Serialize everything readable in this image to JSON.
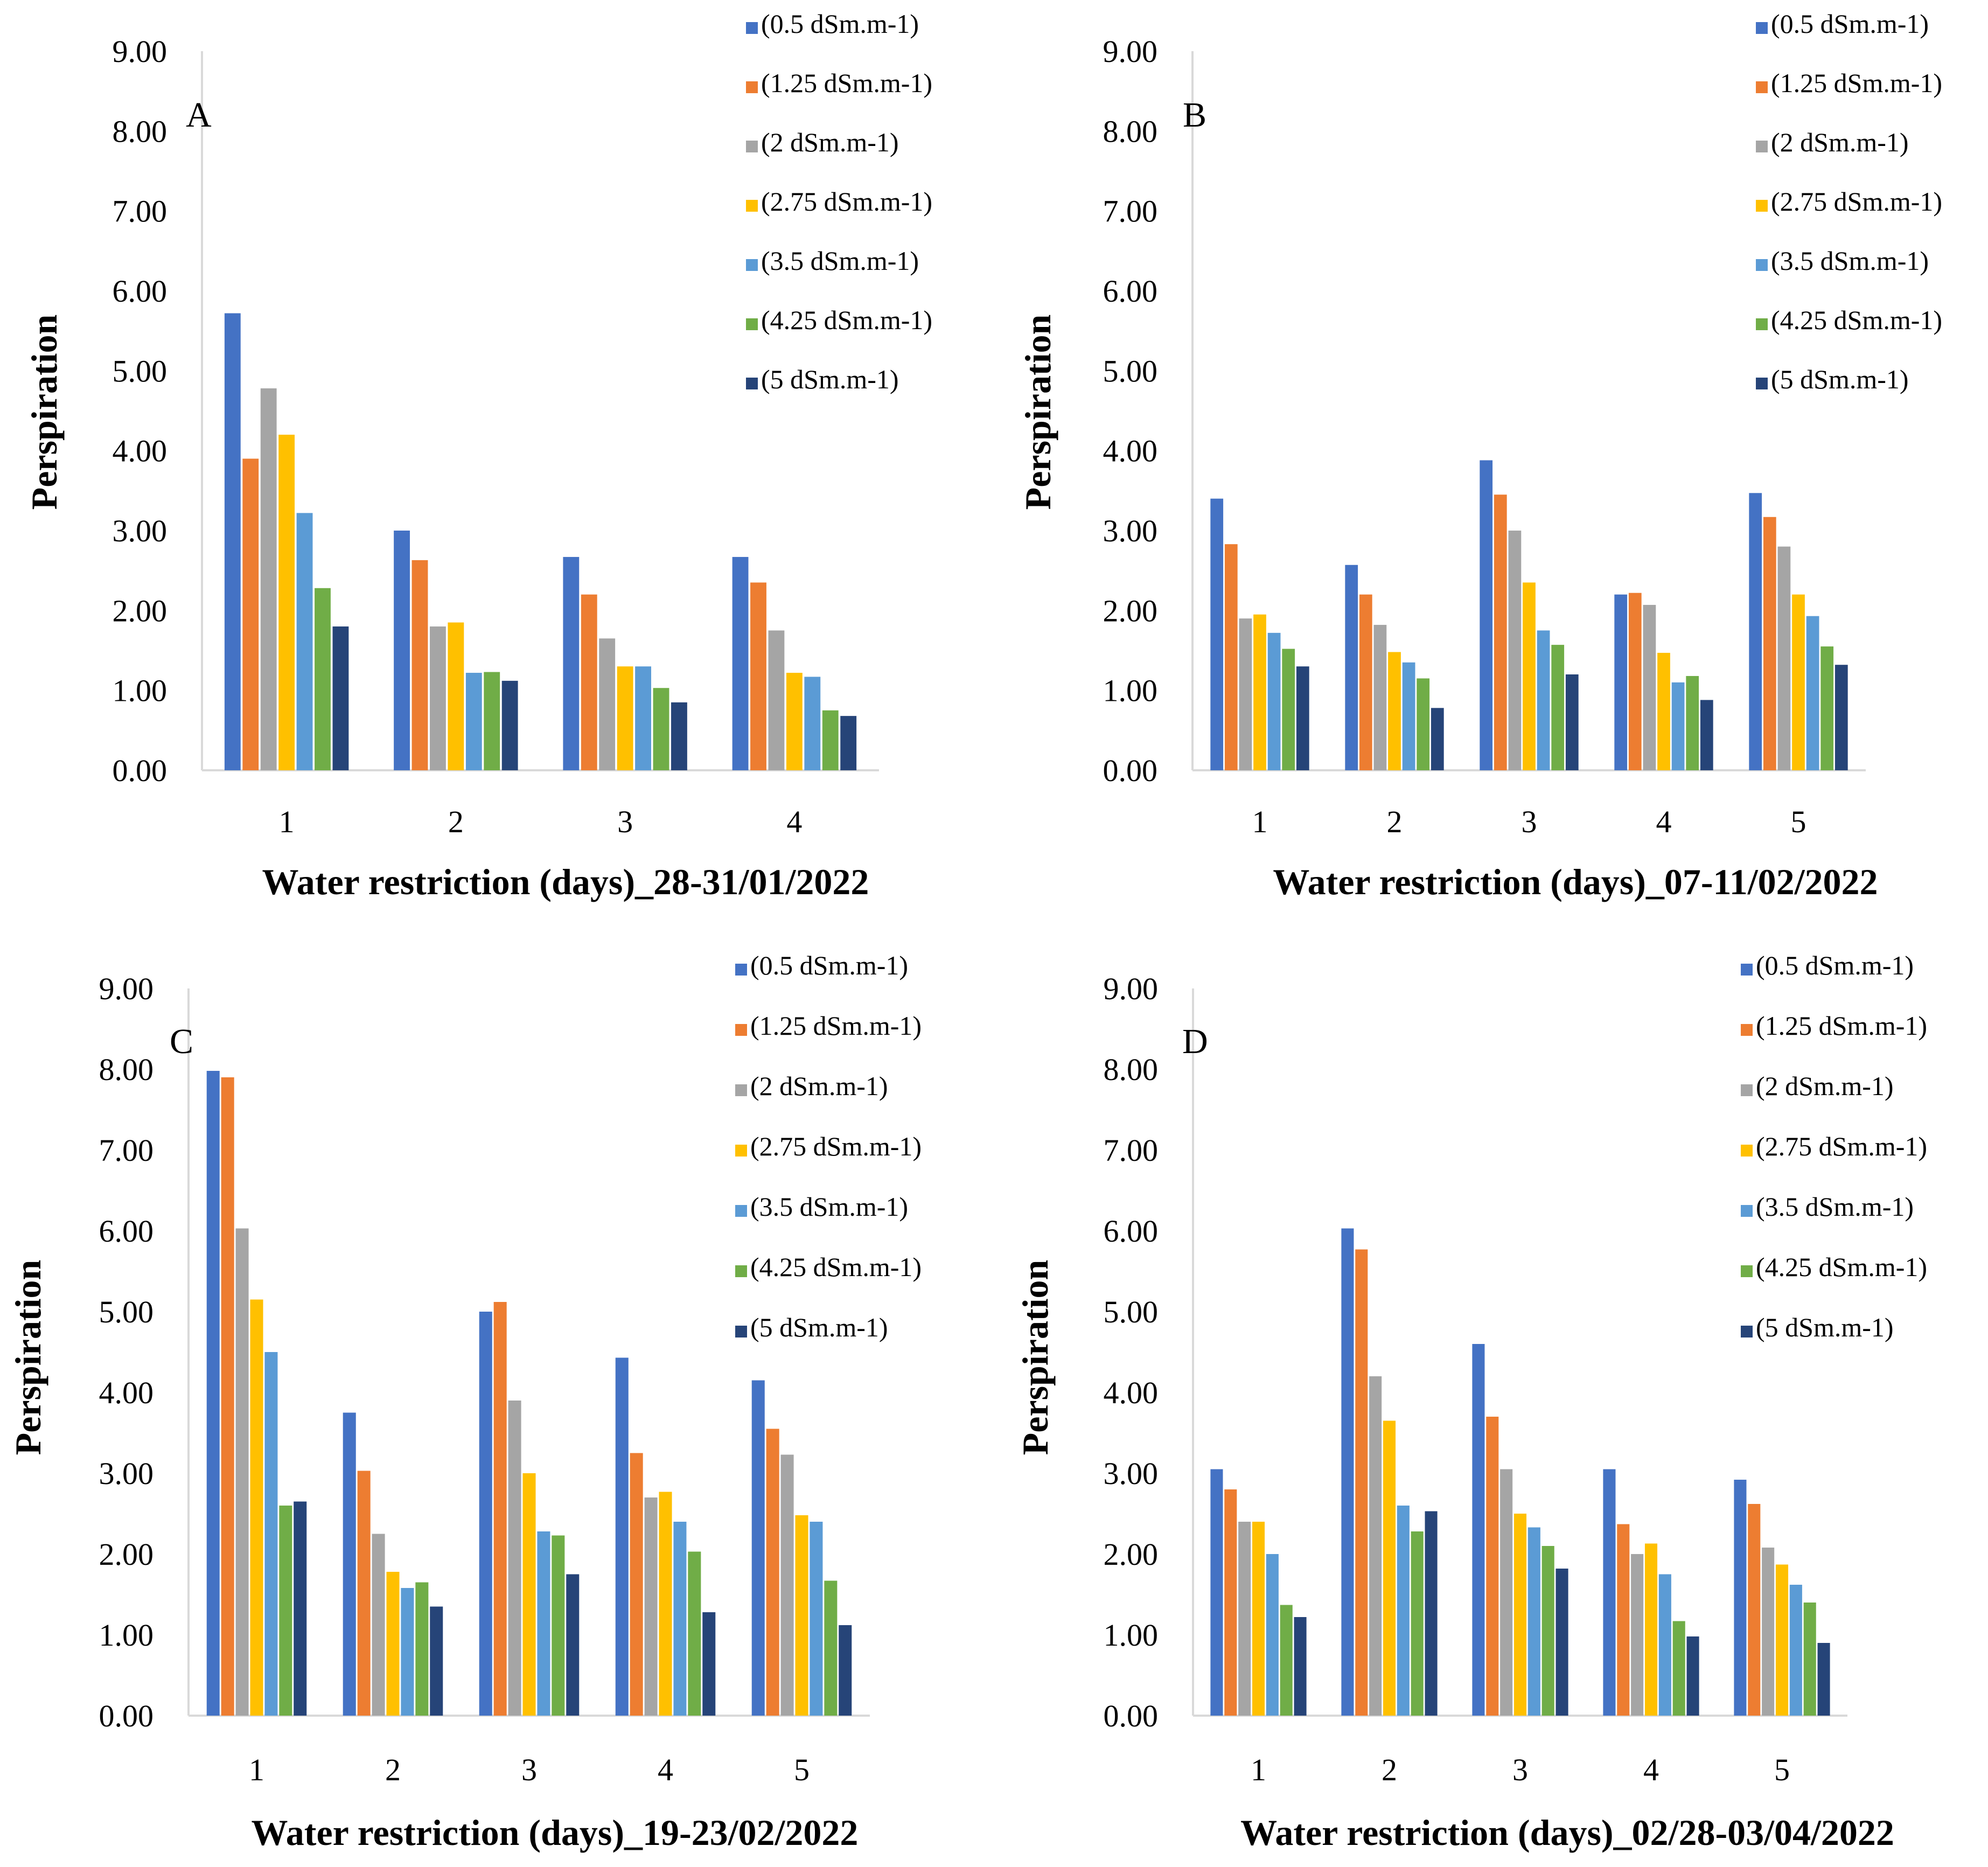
{
  "colors": {
    "series": [
      "#4472C4",
      "#ED7D31",
      "#A5A5A5",
      "#FFC000",
      "#5B9BD5",
      "#70AD47",
      "#264478"
    ],
    "axis": "#d9d9d9"
  },
  "chart_data": [
    {
      "type": "bar",
      "panel": "A",
      "categories": [
        "1",
        "2",
        "3",
        "4"
      ],
      "ylim": [
        0,
        9
      ],
      "yticks": [
        "0.00",
        "1.00",
        "2.00",
        "3.00",
        "4.00",
        "5.00",
        "6.00",
        "7.00",
        "8.00",
        "9.00"
      ],
      "ylabel": "Perspiration",
      "xlabel": "Water restriction (days)_28-31/01/2022",
      "grid": false,
      "legend_position": "top-right",
      "series": [
        {
          "name": "(0.5 dSm.m-1)",
          "values": [
            5.72,
            3.0,
            2.67,
            2.67
          ]
        },
        {
          "name": "(1.25 dSm.m-1)",
          "values": [
            3.9,
            2.63,
            2.2,
            2.35
          ]
        },
        {
          "name": "(2 dSm.m-1)",
          "values": [
            4.78,
            1.8,
            1.65,
            1.75
          ]
        },
        {
          "name": "(2.75 dSm.m-1)",
          "values": [
            4.2,
            1.85,
            1.3,
            1.22
          ]
        },
        {
          "name": "(3.5 dSm.m-1)",
          "values": [
            3.22,
            1.22,
            1.3,
            1.17
          ]
        },
        {
          "name": "(4.25 dSm.m-1)",
          "values": [
            2.28,
            1.23,
            1.03,
            0.75
          ]
        },
        {
          "name": "(5 dSm.m-1)",
          "values": [
            1.8,
            1.12,
            0.85,
            0.68
          ]
        }
      ]
    },
    {
      "type": "bar",
      "panel": "B",
      "categories": [
        "1",
        "2",
        "3",
        "4",
        "5"
      ],
      "ylim": [
        0,
        9
      ],
      "yticks": [
        "0.00",
        "1.00",
        "2.00",
        "3.00",
        "4.00",
        "5.00",
        "6.00",
        "7.00",
        "8.00",
        "9.00"
      ],
      "ylabel": "Perspiration",
      "xlabel": "Water restriction (days)_07-11/02/2022",
      "grid": false,
      "legend_position": "top-right",
      "series": [
        {
          "name": "(0.5 dSm.m-1)",
          "values": [
            3.4,
            2.57,
            3.88,
            2.2,
            3.47
          ]
        },
        {
          "name": "(1.25 dSm.m-1)",
          "values": [
            2.83,
            2.2,
            3.45,
            2.22,
            3.17
          ]
        },
        {
          "name": "(2 dSm.m-1)",
          "values": [
            1.9,
            1.82,
            3.0,
            2.07,
            2.8
          ]
        },
        {
          "name": "(2.75 dSm.m-1)",
          "values": [
            1.95,
            1.48,
            2.35,
            1.47,
            2.2
          ]
        },
        {
          "name": "(3.5 dSm.m-1)",
          "values": [
            1.72,
            1.35,
            1.75,
            1.1,
            1.93
          ]
        },
        {
          "name": "(4.25 dSm.m-1)",
          "values": [
            1.52,
            1.15,
            1.57,
            1.18,
            1.55
          ]
        },
        {
          "name": "(5 dSm.m-1)",
          "values": [
            1.3,
            0.78,
            1.2,
            0.88,
            1.32
          ]
        }
      ]
    },
    {
      "type": "bar",
      "panel": "C",
      "categories": [
        "1",
        "2",
        "3",
        "4",
        "5"
      ],
      "ylim": [
        0,
        9
      ],
      "yticks": [
        "0.00",
        "1.00",
        "2.00",
        "3.00",
        "4.00",
        "5.00",
        "6.00",
        "7.00",
        "8.00",
        "9.00"
      ],
      "ylabel": "Perspiration",
      "xlabel": "Water restriction (days)_19-23/02/2022",
      "grid": false,
      "legend_position": "top-right",
      "series": [
        {
          "name": "(0.5 dSm.m-1)",
          "values": [
            7.98,
            3.75,
            5.0,
            4.43,
            4.15
          ]
        },
        {
          "name": "(1.25 dSm.m-1)",
          "values": [
            7.9,
            3.03,
            5.12,
            3.25,
            3.55
          ]
        },
        {
          "name": "(2 dSm.m-1)",
          "values": [
            6.03,
            2.25,
            3.9,
            2.7,
            3.23
          ]
        },
        {
          "name": "(2.75 dSm.m-1)",
          "values": [
            5.15,
            1.78,
            3.0,
            2.77,
            2.48
          ]
        },
        {
          "name": "(3.5 dSm.m-1)",
          "values": [
            4.5,
            1.58,
            2.28,
            2.4,
            2.4
          ]
        },
        {
          "name": "(4.25 dSm.m-1)",
          "values": [
            2.6,
            1.65,
            2.23,
            2.03,
            1.67
          ]
        },
        {
          "name": "(5 dSm.m-1)",
          "values": [
            2.65,
            1.35,
            1.75,
            1.28,
            1.12
          ]
        }
      ]
    },
    {
      "type": "bar",
      "panel": "D",
      "categories": [
        "1",
        "2",
        "3",
        "4",
        "5"
      ],
      "ylim": [
        0,
        9
      ],
      "yticks": [
        "0.00",
        "1.00",
        "2.00",
        "3.00",
        "4.00",
        "5.00",
        "6.00",
        "7.00",
        "8.00",
        "9.00"
      ],
      "ylabel": "Perspiration",
      "xlabel": "Water restriction (days)_02/28-03/04/2022",
      "grid": false,
      "legend_position": "top-right",
      "series": [
        {
          "name": "(0.5 dSm.m-1)",
          "values": [
            3.05,
            6.03,
            4.6,
            3.05,
            2.92
          ]
        },
        {
          "name": "(1.25 dSm.m-1)",
          "values": [
            2.8,
            5.77,
            3.7,
            2.37,
            2.62
          ]
        },
        {
          "name": "(2 dSm.m-1)",
          "values": [
            2.4,
            4.2,
            3.05,
            2.0,
            2.08
          ]
        },
        {
          "name": "(2.75 dSm.m-1)",
          "values": [
            2.4,
            3.65,
            2.5,
            2.13,
            1.87
          ]
        },
        {
          "name": "(3.5 dSm.m-1)",
          "values": [
            2.0,
            2.6,
            2.33,
            1.75,
            1.62
          ]
        },
        {
          "name": "(4.25 dSm.m-1)",
          "values": [
            1.37,
            2.28,
            2.1,
            1.17,
            1.4
          ]
        },
        {
          "name": "(5 dSm.m-1)",
          "values": [
            1.22,
            2.53,
            1.82,
            0.98,
            0.9
          ]
        }
      ]
    }
  ]
}
